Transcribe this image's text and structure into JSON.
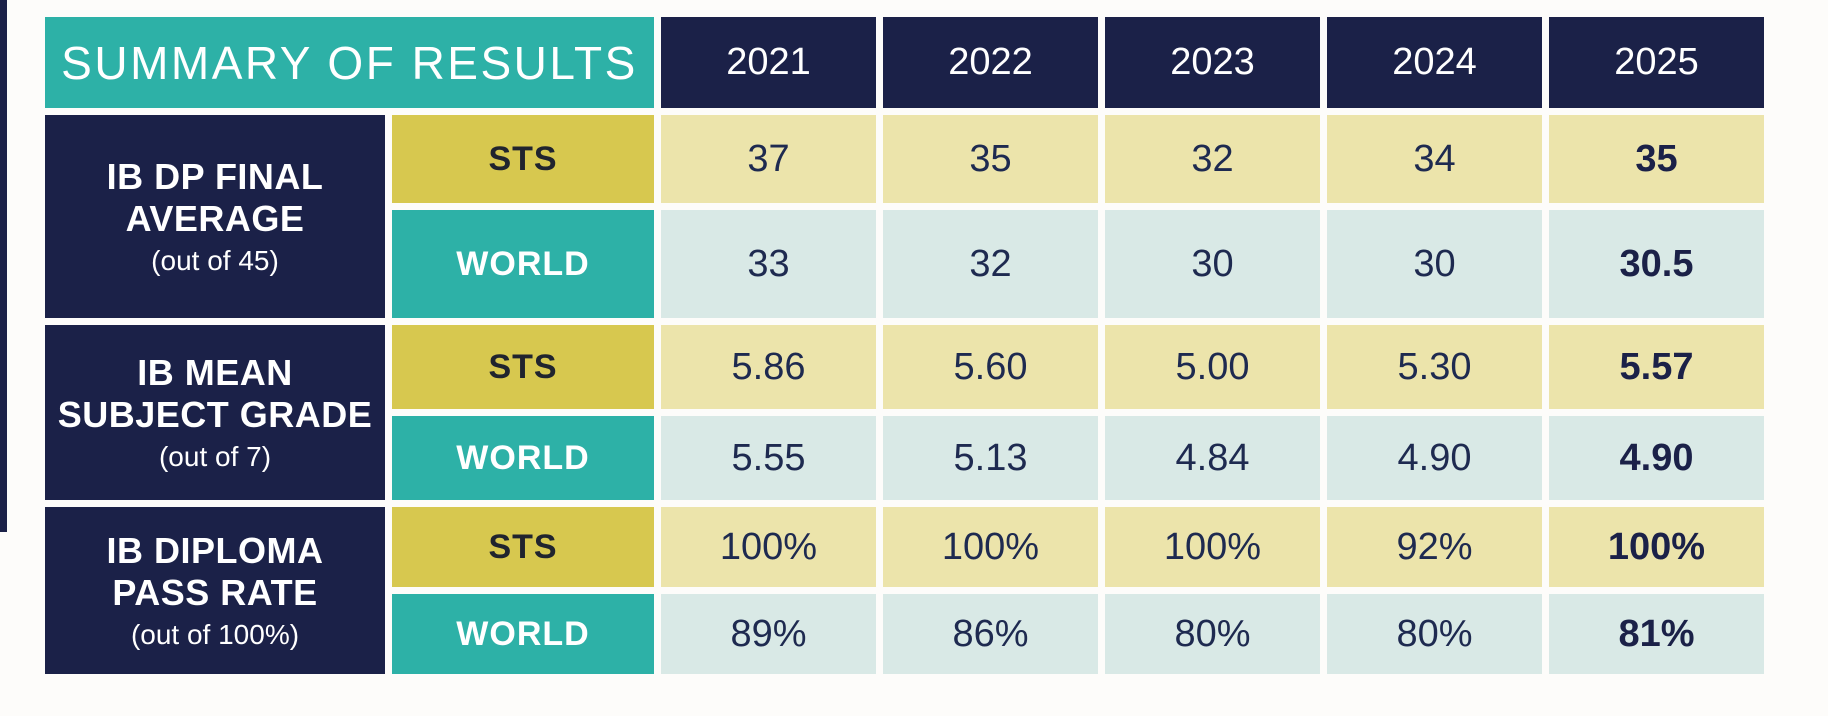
{
  "header": {
    "title": "SUMMARY OF RESULTS",
    "years": [
      "2021",
      "2022",
      "2023",
      "2024",
      "2025"
    ]
  },
  "groups": [
    {
      "label": {
        "line1": "IB DP FINAL",
        "line2": "AVERAGE",
        "note": "(out of 45)"
      },
      "rows": [
        {
          "scope": "STS",
          "values": [
            "37",
            "35",
            "32",
            "34",
            "35"
          ]
        },
        {
          "scope": "WORLD",
          "values": [
            "33",
            "32",
            "30",
            "30",
            "30.5"
          ]
        }
      ]
    },
    {
      "label": {
        "line1": "IB MEAN",
        "line2": "SUBJECT GRADE",
        "note": "(out of 7)"
      },
      "rows": [
        {
          "scope": "STS",
          "values": [
            "5.86",
            "5.60",
            "5.00",
            "5.30",
            "5.57"
          ]
        },
        {
          "scope": "WORLD",
          "values": [
            "5.55",
            "5.13",
            "4.84",
            "4.90",
            "4.90"
          ]
        }
      ]
    },
    {
      "label": {
        "line1": "IB DIPLOMA",
        "line2": "PASS RATE",
        "note": "(out of 100%)"
      },
      "rows": [
        {
          "scope": "STS",
          "values": [
            "100%",
            "100%",
            "100%",
            "92%",
            "100%"
          ]
        },
        {
          "scope": "WORLD",
          "values": [
            "89%",
            "86%",
            "80%",
            "80%",
            "81%"
          ]
        }
      ]
    }
  ],
  "colors": {
    "teal": "#2db1a7",
    "navy": "#1b2148",
    "gold": "#d7c84f",
    "light_yellow": "#ece4ab",
    "light_blue": "#d9e9e6",
    "value_text": "#1e2a50",
    "white": "#ffffff"
  },
  "chart_data": {
    "type": "table",
    "title": "SUMMARY OF RESULTS",
    "columns": [
      "2021",
      "2022",
      "2023",
      "2024",
      "2025"
    ],
    "rows": [
      {
        "metric": "IB DP FINAL AVERAGE (out of 45)",
        "scope": "STS",
        "values": [
          37,
          35,
          32,
          34,
          35
        ]
      },
      {
        "metric": "IB DP FINAL AVERAGE (out of 45)",
        "scope": "WORLD",
        "values": [
          33,
          32,
          30,
          30,
          30.5
        ]
      },
      {
        "metric": "IB MEAN SUBJECT GRADE (out of 7)",
        "scope": "STS",
        "values": [
          5.86,
          5.6,
          5.0,
          5.3,
          5.57
        ]
      },
      {
        "metric": "IB MEAN SUBJECT GRADE (out of 7)",
        "scope": "WORLD",
        "values": [
          5.55,
          5.13,
          4.84,
          4.9,
          4.9
        ]
      },
      {
        "metric": "IB DIPLOMA PASS RATE (out of 100%)",
        "scope": "STS",
        "values": [
          "100%",
          "100%",
          "100%",
          "92%",
          "100%"
        ]
      },
      {
        "metric": "IB DIPLOMA PASS RATE (out of 100%)",
        "scope": "WORLD",
        "values": [
          "89%",
          "86%",
          "80%",
          "80%",
          "81%"
        ]
      }
    ],
    "layout_hints": {
      "highlight_column": "2025",
      "highlight_style": "bold",
      "sts_row_fill": "#ece4ab",
      "world_row_fill": "#d9e9e6"
    }
  }
}
